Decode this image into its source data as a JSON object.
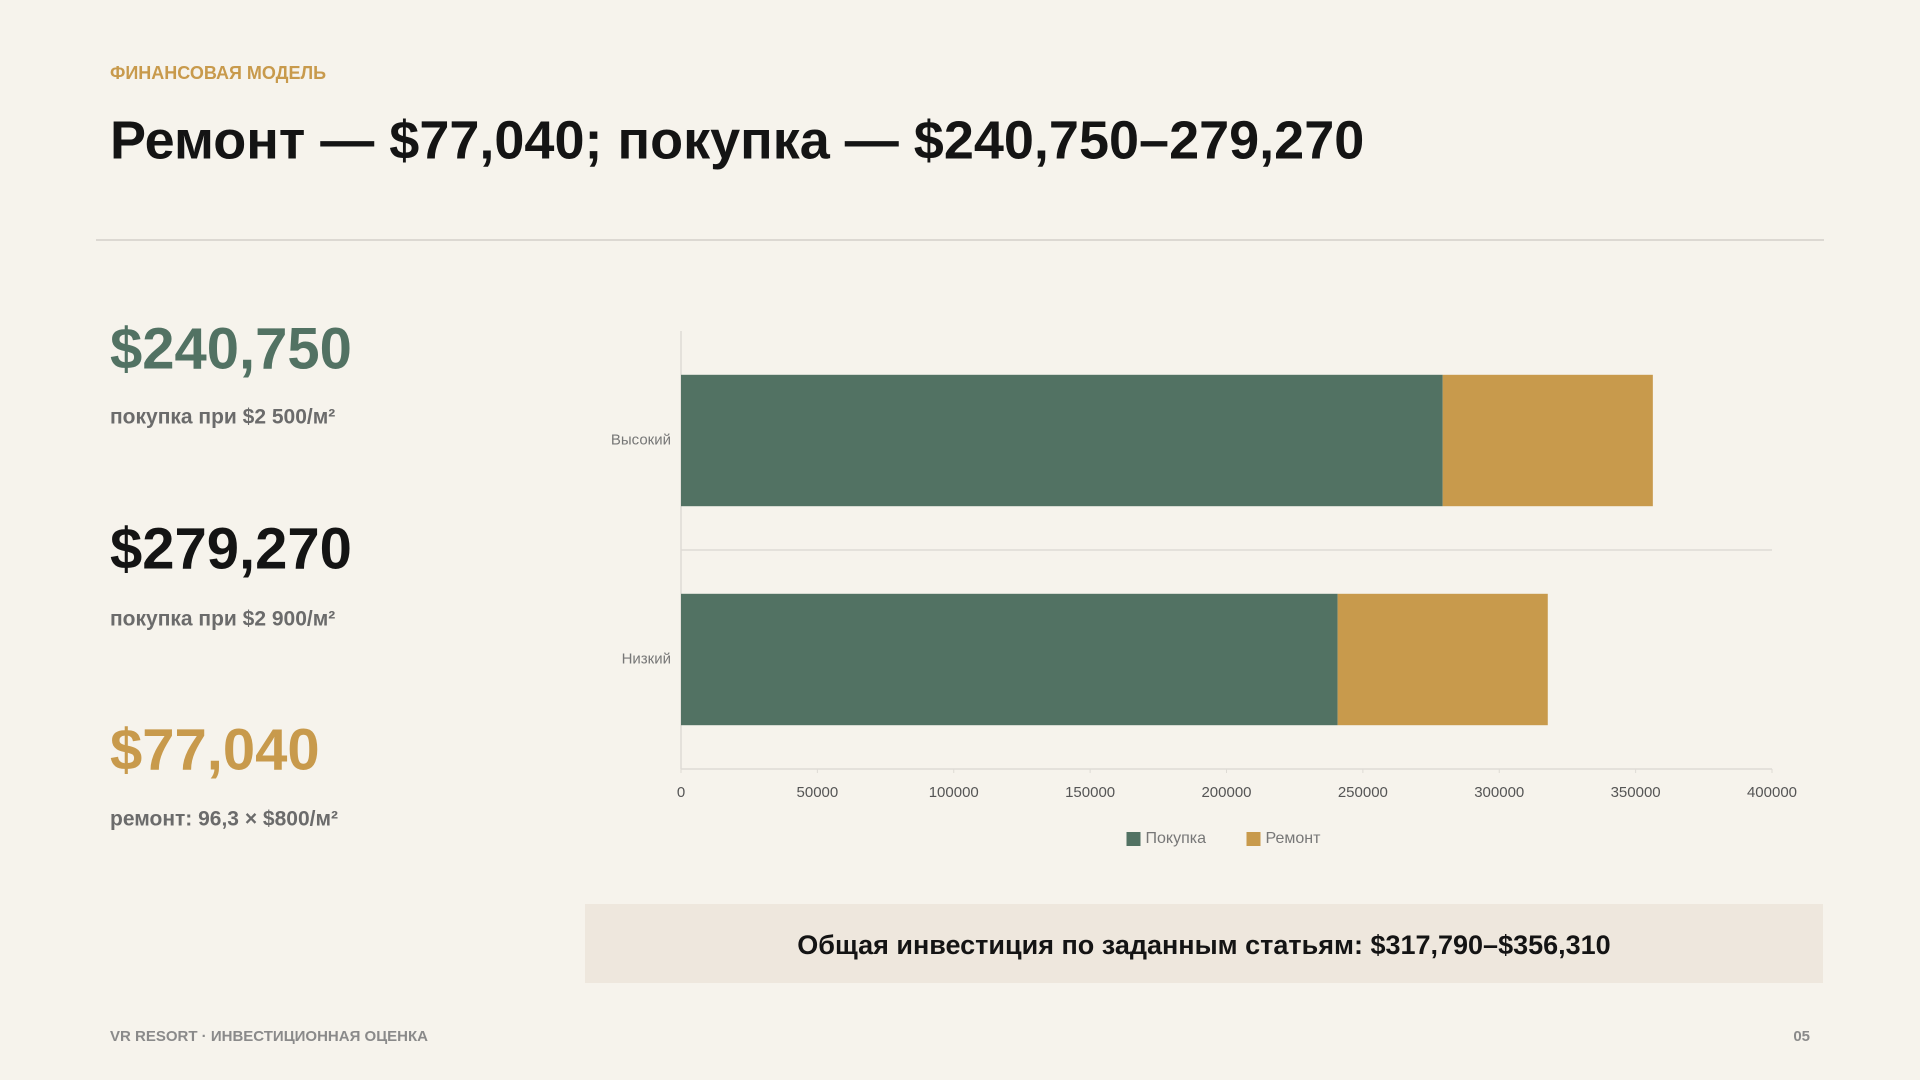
{
  "header": {
    "kicker": "ФИНАНСОВАЯ МОДЕЛЬ",
    "title": "Ремонт — $77,040; покупка — $240,750–279,270"
  },
  "stats": [
    {
      "value": "$240,750",
      "caption": "покупка при $2 500/м²"
    },
    {
      "value": "$279,270",
      "caption": "покупка при $2 900/м²"
    },
    {
      "value": "$77,040",
      "caption": "ремонт: 96,3 × $800/м²"
    }
  ],
  "chart_data": {
    "type": "stacked-barh",
    "categories": [
      "Высокий",
      "Низкий"
    ],
    "series": [
      {
        "name": "Покупка",
        "color": "#527263",
        "values": [
          279270,
          240750
        ]
      },
      {
        "name": "Ремонт",
        "color": "#c89a4c",
        "values": [
          77040,
          77040
        ]
      }
    ],
    "xlim": [
      0,
      400000
    ],
    "xticks": [
      0,
      50000,
      100000,
      150000,
      200000,
      250000,
      300000,
      350000,
      400000
    ],
    "legend": "bottom"
  },
  "summary": "Общая инвестиция по заданным статьям: $317,790–$356,310",
  "footer": {
    "left": "VR RESORT · ИНВЕСТИЦИОННАЯ ОЦЕНКА",
    "page": "05"
  }
}
